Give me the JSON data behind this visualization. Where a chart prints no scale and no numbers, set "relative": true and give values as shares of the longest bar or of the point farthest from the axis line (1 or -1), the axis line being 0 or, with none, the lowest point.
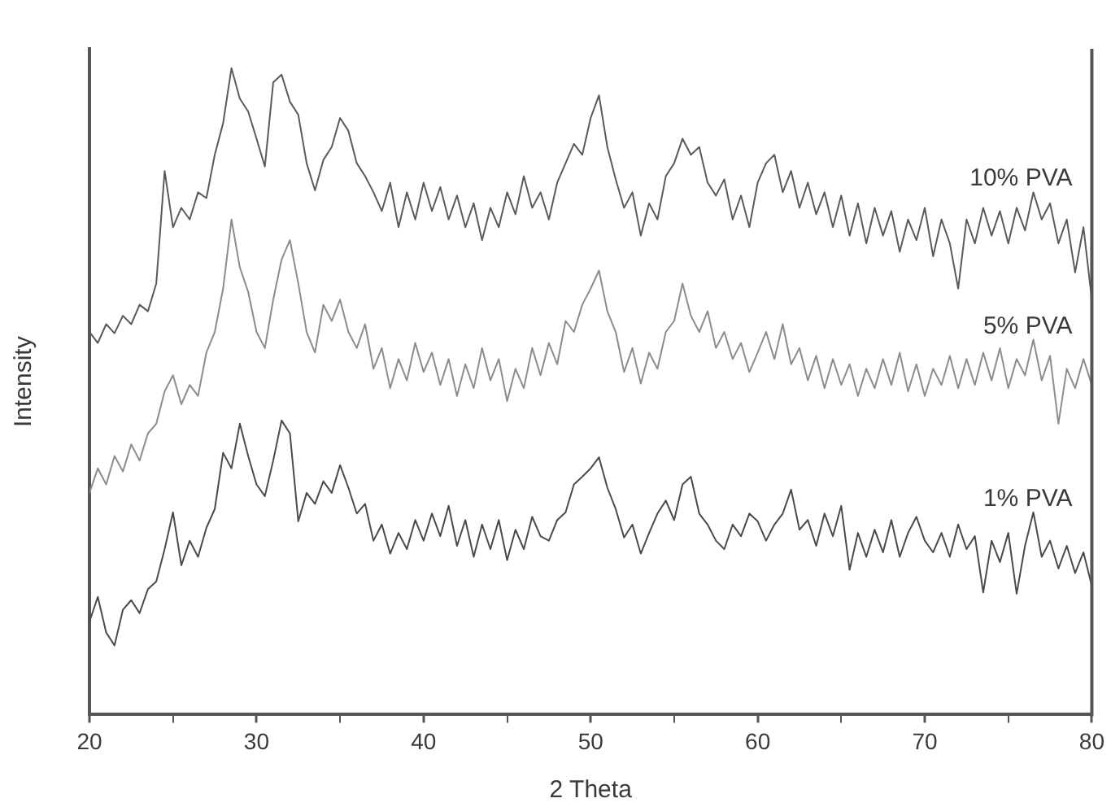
{
  "chart_data": {
    "type": "line",
    "relative": true,
    "xlabel": "2 Theta",
    "ylabel": "Intensity",
    "xlim": [
      20,
      80
    ],
    "xticks": [
      20,
      {
        "value": 25,
        "label": null
      },
      30,
      {
        "value": 35,
        "label": null
      },
      40,
      {
        "value": 45,
        "label": null
      },
      50,
      {
        "value": 55,
        "label": null
      },
      60,
      {
        "value": 65,
        "label": null
      },
      70,
      {
        "value": 75,
        "label": null
      },
      80
    ],
    "x": [
      20,
      20.5,
      21,
      21.5,
      22,
      22.5,
      23,
      23.5,
      24,
      24.5,
      25,
      25.5,
      26,
      26.5,
      27,
      27.5,
      28,
      28.5,
      29,
      29.5,
      30,
      30.5,
      31,
      31.5,
      32,
      32.5,
      33,
      33.5,
      34,
      34.5,
      35,
      35.5,
      36,
      36.5,
      37,
      37.5,
      38,
      38.5,
      39,
      39.5,
      40,
      40.5,
      41,
      41.5,
      42,
      42.5,
      43,
      43.5,
      44,
      44.5,
      45,
      45.5,
      46,
      46.5,
      47,
      47.5,
      48,
      48.5,
      49,
      49.5,
      50,
      50.5,
      51,
      51.5,
      52,
      52.5,
      53,
      53.5,
      54,
      54.5,
      55,
      55.5,
      56,
      56.5,
      57,
      57.5,
      58,
      58.5,
      59,
      59.5,
      60,
      60.5,
      61,
      61.5,
      62,
      62.5,
      63,
      63.5,
      64,
      64.5,
      65,
      65.5,
      66,
      66.5,
      67,
      67.5,
      68,
      68.5,
      69,
      69.5,
      70,
      70.5,
      71,
      71.5,
      72,
      72.5,
      73,
      73.5,
      74,
      74.5,
      75,
      75.5,
      76,
      76.5,
      77,
      77.5,
      78,
      78.5,
      79,
      79.5,
      80
    ],
    "series": [
      {
        "name": "10% PVA",
        "color": "#5a5a5a",
        "values": [
          0.592,
          0.575,
          0.604,
          0.59,
          0.617,
          0.604,
          0.634,
          0.624,
          0.667,
          0.841,
          0.754,
          0.784,
          0.766,
          0.808,
          0.799,
          0.866,
          0.915,
          1,
          0.953,
          0.933,
          0.891,
          0.848,
          0.978,
          0.99,
          0.948,
          0.928,
          0.853,
          0.811,
          0.858,
          0.878,
          0.923,
          0.903,
          0.853,
          0.833,
          0.808,
          0.779,
          0.823,
          0.754,
          0.808,
          0.766,
          0.823,
          0.779,
          0.816,
          0.766,
          0.803,
          0.754,
          0.791,
          0.734,
          0.784,
          0.754,
          0.808,
          0.774,
          0.833,
          0.784,
          0.808,
          0.766,
          0.823,
          0.853,
          0.883,
          0.866,
          0.923,
          0.958,
          0.878,
          0.828,
          0.784,
          0.808,
          0.741,
          0.791,
          0.766,
          0.833,
          0.853,
          0.891,
          0.866,
          0.878,
          0.823,
          0.803,
          0.828,
          0.766,
          0.803,
          0.754,
          0.823,
          0.853,
          0.866,
          0.808,
          0.841,
          0.784,
          0.823,
          0.774,
          0.808,
          0.754,
          0.803,
          0.741,
          0.791,
          0.729,
          0.784,
          0.741,
          0.779,
          0.716,
          0.766,
          0.734,
          0.784,
          0.709,
          0.766,
          0.729,
          0.659,
          0.766,
          0.729,
          0.784,
          0.741,
          0.779,
          0.729,
          0.784,
          0.749,
          0.808,
          0.766,
          0.791,
          0.729,
          0.766,
          0.684,
          0.754,
          0.642
        ]
      },
      {
        "name": "5% PVA",
        "color": "#8c8c8c",
        "values": [
          0.343,
          0.381,
          0.356,
          0.4,
          0.376,
          0.418,
          0.393,
          0.435,
          0.45,
          0.5,
          0.525,
          0.48,
          0.51,
          0.493,
          0.56,
          0.592,
          0.659,
          0.766,
          0.692,
          0.654,
          0.592,
          0.567,
          0.642,
          0.704,
          0.734,
          0.667,
          0.592,
          0.56,
          0.634,
          0.609,
          0.642,
          0.592,
          0.567,
          0.604,
          0.535,
          0.567,
          0.505,
          0.55,
          0.517,
          0.575,
          0.53,
          0.56,
          0.51,
          0.55,
          0.493,
          0.542,
          0.505,
          0.567,
          0.517,
          0.55,
          0.485,
          0.535,
          0.505,
          0.567,
          0.525,
          0.575,
          0.542,
          0.609,
          0.592,
          0.634,
          0.659,
          0.687,
          0.624,
          0.592,
          0.53,
          0.567,
          0.512,
          0.56,
          0.535,
          0.592,
          0.609,
          0.667,
          0.617,
          0.592,
          0.624,
          0.567,
          0.592,
          0.55,
          0.575,
          0.53,
          0.56,
          0.592,
          0.55,
          0.604,
          0.542,
          0.567,
          0.517,
          0.555,
          0.505,
          0.55,
          0.51,
          0.542,
          0.493,
          0.535,
          0.505,
          0.55,
          0.51,
          0.56,
          0.5,
          0.542,
          0.493,
          0.535,
          0.51,
          0.555,
          0.505,
          0.55,
          0.51,
          0.56,
          0.517,
          0.567,
          0.505,
          0.55,
          0.525,
          0.58,
          0.517,
          0.555,
          0.45,
          0.535,
          0.505,
          0.55,
          0.51
        ]
      },
      {
        "name": "1% PVA",
        "color": "#4a4a4a",
        "values": [
          0.144,
          0.182,
          0.127,
          0.107,
          0.162,
          0.177,
          0.157,
          0.194,
          0.206,
          0.256,
          0.313,
          0.231,
          0.269,
          0.244,
          0.289,
          0.318,
          0.405,
          0.381,
          0.45,
          0.4,
          0.356,
          0.338,
          0.393,
          0.455,
          0.435,
          0.299,
          0.343,
          0.326,
          0.361,
          0.343,
          0.386,
          0.351,
          0.311,
          0.326,
          0.269,
          0.294,
          0.249,
          0.281,
          0.256,
          0.301,
          0.269,
          0.311,
          0.276,
          0.323,
          0.261,
          0.301,
          0.244,
          0.294,
          0.256,
          0.301,
          0.239,
          0.286,
          0.256,
          0.306,
          0.276,
          0.269,
          0.301,
          0.313,
          0.356,
          0.368,
          0.381,
          0.398,
          0.351,
          0.318,
          0.274,
          0.294,
          0.249,
          0.281,
          0.311,
          0.331,
          0.301,
          0.356,
          0.368,
          0.311,
          0.294,
          0.269,
          0.256,
          0.294,
          0.276,
          0.311,
          0.299,
          0.269,
          0.294,
          0.311,
          0.348,
          0.286,
          0.301,
          0.261,
          0.311,
          0.276,
          0.323,
          0.224,
          0.281,
          0.244,
          0.286,
          0.251,
          0.301,
          0.244,
          0.281,
          0.306,
          0.269,
          0.251,
          0.281,
          0.244,
          0.294,
          0.256,
          0.276,
          0.189,
          0.269,
          0.236,
          0.281,
          0.187,
          0.261,
          0.313,
          0.244,
          0.269,
          0.226,
          0.261,
          0.219,
          0.251,
          0.199
        ]
      }
    ]
  }
}
